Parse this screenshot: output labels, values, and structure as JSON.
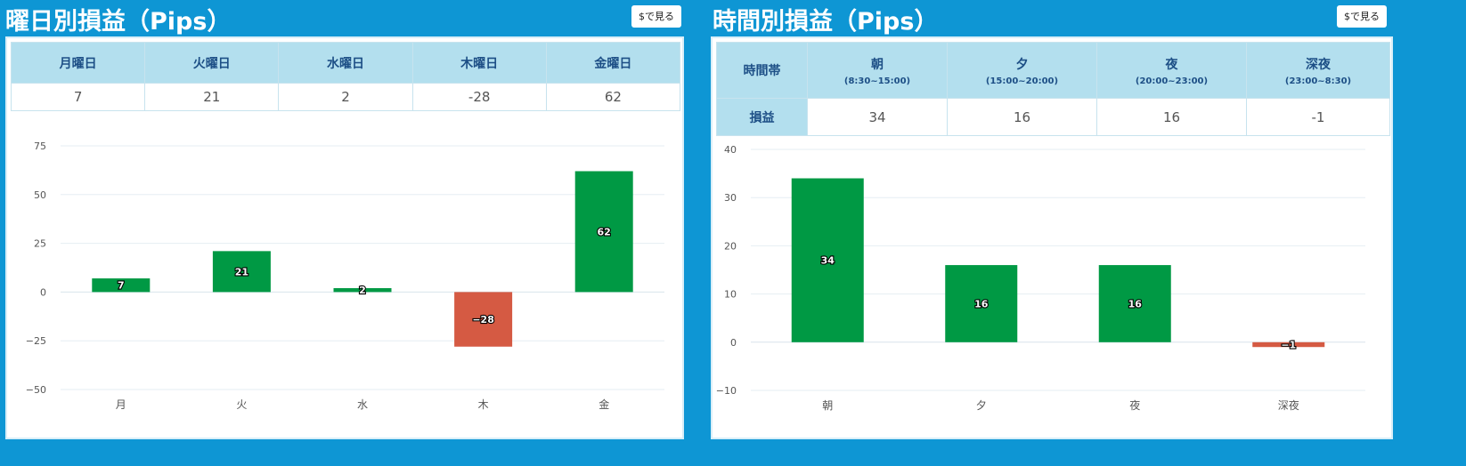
{
  "weekday": {
    "title": "曜日別損益（Pips）",
    "usd_button": "$で見る",
    "headers": [
      "月曜日",
      "火曜日",
      "水曜日",
      "木曜日",
      "金曜日"
    ],
    "values": [
      "7",
      "21",
      "2",
      "-28",
      "62"
    ]
  },
  "hourly": {
    "title": "時間別損益（Pips）",
    "usd_button": "$で見る",
    "corner_label": "時間帯",
    "row_label": "損益",
    "headers": [
      {
        "label": "朝",
        "range": "(8:30~15:00)"
      },
      {
        "label": "夕",
        "range": "(15:00~20:00)"
      },
      {
        "label": "夜",
        "range": "(20:00~23:00)"
      },
      {
        "label": "深夜",
        "range": "(23:00~8:30)"
      }
    ],
    "values": [
      "34",
      "16",
      "16",
      "-1"
    ]
  },
  "chart_data": [
    {
      "type": "bar",
      "title": "曜日別損益（Pips）",
      "categories": [
        "月",
        "火",
        "水",
        "木",
        "金"
      ],
      "values": [
        7,
        21,
        2,
        -28,
        62
      ],
      "ylim": [
        -50,
        75
      ],
      "yticks": [
        -50,
        -25,
        0,
        25,
        50,
        75
      ],
      "grid": true,
      "colors": {
        "positive": "#009944",
        "negative": "#d55a43"
      }
    },
    {
      "type": "bar",
      "title": "時間別損益（Pips）",
      "categories": [
        "朝",
        "夕",
        "夜",
        "深夜"
      ],
      "values": [
        34,
        16,
        16,
        -1
      ],
      "ylim": [
        -10,
        40
      ],
      "yticks": [
        -10,
        0,
        10,
        20,
        30,
        40
      ],
      "grid": true,
      "colors": {
        "positive": "#009944",
        "negative": "#d55a43"
      }
    }
  ]
}
